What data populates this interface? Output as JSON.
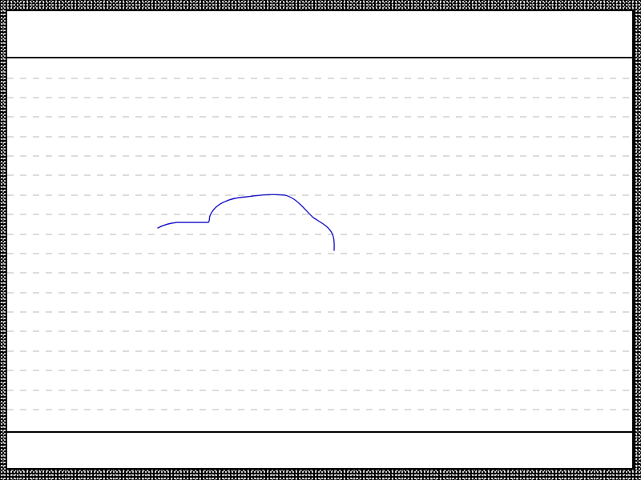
{
  "app": {
    "window_title": "",
    "mode": "handwriting-canvas"
  },
  "colors": {
    "frame": "#000000",
    "paper": "#ffffff",
    "guide": "#b8b8b8",
    "ink": "#1f18c8"
  },
  "canvas": {
    "guide_count": 18,
    "has_top_band": true,
    "has_bottom_band": true,
    "stroke_count": 1
  },
  "icons": {
    "frame_texture": "speckled-border"
  }
}
